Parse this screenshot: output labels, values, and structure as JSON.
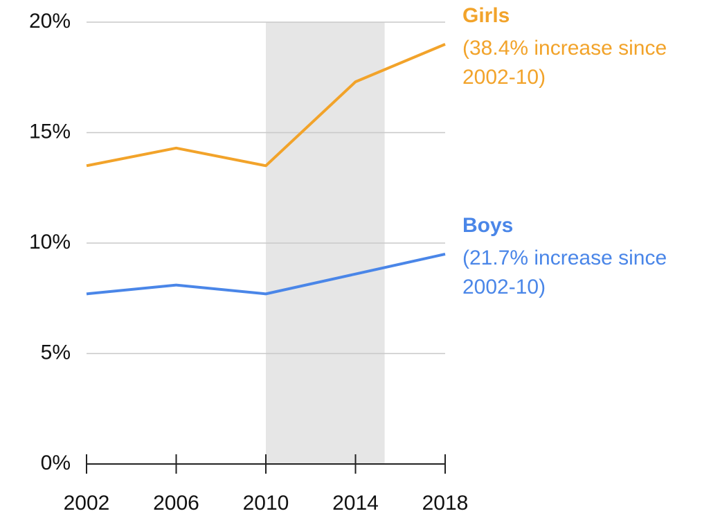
{
  "chart_data": {
    "type": "line",
    "x": [
      2002,
      2006,
      2010,
      2014,
      2018
    ],
    "xlim": [
      2002,
      2018
    ],
    "xticks": [
      2002,
      2006,
      2010,
      2014,
      2018
    ],
    "ylim": [
      0,
      20
    ],
    "yticks": [
      {
        "value": 0,
        "label": "0%"
      },
      {
        "value": 5,
        "label": "5%"
      },
      {
        "value": 10,
        "label": "10%"
      },
      {
        "value": 15,
        "label": "15%"
      },
      {
        "value": 20,
        "label": "20%"
      }
    ],
    "grid": true,
    "highlight": {
      "x": [
        2010,
        2015.3
      ],
      "color": "#e6e6e6"
    },
    "series": [
      {
        "name": "Girls",
        "color": "#f2a32a",
        "values": [
          13.5,
          14.3,
          13.5,
          17.3,
          19.0
        ],
        "note": [
          "(38.4% increase since",
          "2002-10)"
        ]
      },
      {
        "name": "Boys",
        "color": "#4a86e8",
        "values": [
          7.7,
          8.1,
          7.7,
          8.6,
          9.5
        ],
        "note": [
          "(21.7% increase since",
          "2002-10)"
        ]
      }
    ]
  }
}
